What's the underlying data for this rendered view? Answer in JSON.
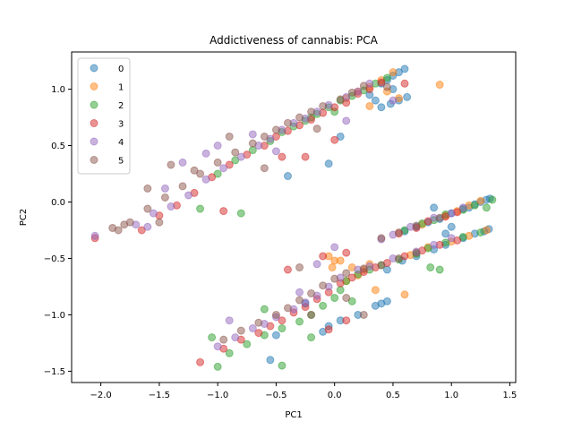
{
  "chart_data": {
    "type": "scatter",
    "title": "Addictiveness of cannabis: PCA",
    "xlabel": "PC1",
    "ylabel": "PC2",
    "xlim": [
      -2.25,
      1.55
    ],
    "ylim": [
      -1.6,
      1.33
    ],
    "xticks": [
      -2.0,
      -1.5,
      -1.0,
      -0.5,
      0.0,
      0.5,
      1.0,
      1.5
    ],
    "xtick_labels": [
      "−2.0",
      "−1.5",
      "−1.0",
      "−0.5",
      "0.0",
      "0.5",
      "1.0",
      "1.5"
    ],
    "yticks": [
      -1.5,
      -1.0,
      -0.5,
      0.0,
      0.5,
      1.0
    ],
    "ytick_labels": [
      "−1.5",
      "−1.0",
      "−0.5",
      "0.0",
      "0.5",
      "1.0"
    ],
    "legend_position": "upper-left",
    "marker_alpha": 0.5,
    "series": [
      {
        "name": "0",
        "color": "#1f77b4",
        "points": [
          [
            1.3,
            0.02
          ],
          [
            1.25,
            0.0
          ],
          [
            1.33,
            0.03
          ],
          [
            1.2,
            -0.02
          ],
          [
            1.1,
            -0.06
          ],
          [
            1.0,
            -0.1
          ],
          [
            0.9,
            -0.15
          ],
          [
            0.8,
            -0.18
          ],
          [
            0.7,
            -0.22
          ],
          [
            0.6,
            -0.26
          ],
          [
            1.32,
            -0.24
          ],
          [
            1.28,
            -0.26
          ],
          [
            1.2,
            -0.28
          ],
          [
            1.1,
            -0.32
          ],
          [
            0.95,
            -0.38
          ],
          [
            0.85,
            -0.42
          ],
          [
            0.7,
            -0.48
          ],
          [
            0.58,
            -0.52
          ],
          [
            0.45,
            -0.6
          ],
          [
            0.6,
            1.18
          ],
          [
            0.55,
            1.15
          ],
          [
            0.5,
            1.12
          ],
          [
            0.45,
            1.08
          ],
          [
            0.4,
            1.05
          ],
          [
            0.62,
            0.93
          ],
          [
            0.55,
            0.9
          ],
          [
            0.48,
            0.87
          ],
          [
            0.4,
            0.84
          ],
          [
            0.05,
            0.58
          ],
          [
            -0.05,
            0.34
          ],
          [
            -0.4,
            0.23
          ],
          [
            0.45,
            -0.88
          ],
          [
            0.4,
            -0.9
          ],
          [
            0.35,
            -0.92
          ],
          [
            0.2,
            -1.0
          ],
          [
            0.05,
            -1.05
          ],
          [
            -0.05,
            -1.1
          ],
          [
            -0.1,
            -1.15
          ],
          [
            -0.25,
            -0.9
          ],
          [
            -0.55,
            -1.4
          ],
          [
            -0.5,
            -1.18
          ],
          [
            0.35,
            0.9
          ],
          [
            0.85,
            -0.05
          ],
          [
            1.15,
            -0.05
          ],
          [
            0.95,
            -0.28
          ],
          [
            0.5,
            1.0
          ],
          [
            0.3,
            0.95
          ],
          [
            1.0,
            -0.22
          ]
        ]
      },
      {
        "name": "1",
        "color": "#ff7f0e",
        "points": [
          [
            1.25,
            0.01
          ],
          [
            1.15,
            -0.03
          ],
          [
            1.05,
            -0.08
          ],
          [
            0.95,
            -0.12
          ],
          [
            0.75,
            -0.2
          ],
          [
            1.3,
            -0.25
          ],
          [
            1.15,
            -0.3
          ],
          [
            1.0,
            -0.35
          ],
          [
            0.8,
            -0.4
          ],
          [
            0.65,
            -0.47
          ],
          [
            0.5,
            1.15
          ],
          [
            0.4,
            1.08
          ],
          [
            0.3,
            1.02
          ],
          [
            0.2,
            0.98
          ],
          [
            0.1,
            0.92
          ],
          [
            0.55,
            0.92
          ],
          [
            0.3,
            0.85
          ],
          [
            0.15,
            -0.58
          ],
          [
            0.05,
            -0.52
          ],
          [
            -0.05,
            -0.48
          ],
          [
            0.0,
            -0.52
          ],
          [
            0.3,
            -0.55
          ],
          [
            0.25,
            -0.6
          ],
          [
            0.1,
            -0.7
          ],
          [
            0.35,
            -0.78
          ],
          [
            0.6,
            -0.82
          ],
          [
            0.9,
            1.04
          ],
          [
            0.45,
            0.98
          ],
          [
            0.2,
            -0.65
          ],
          [
            -0.02,
            -0.58
          ]
        ]
      },
      {
        "name": "2",
        "color": "#2ca02c",
        "points": [
          [
            1.2,
            -0.03
          ],
          [
            1.1,
            -0.07
          ],
          [
            0.95,
            -0.11
          ],
          [
            0.85,
            -0.16
          ],
          [
            0.75,
            -0.19
          ],
          [
            0.6,
            -0.25
          ],
          [
            1.25,
            -0.27
          ],
          [
            1.1,
            -0.31
          ],
          [
            0.95,
            -0.36
          ],
          [
            0.8,
            -0.41
          ],
          [
            0.7,
            -0.46
          ],
          [
            0.55,
            -0.51
          ],
          [
            0.4,
            -0.56
          ],
          [
            0.3,
            -0.6
          ],
          [
            0.2,
            -0.64
          ],
          [
            0.1,
            -0.7
          ],
          [
            0.05,
            -0.78
          ],
          [
            0.0,
            -0.85
          ],
          [
            -0.1,
            -0.92
          ],
          [
            -0.2,
            -1.0
          ],
          [
            -0.3,
            -1.06
          ],
          [
            -0.45,
            -1.12
          ],
          [
            -0.6,
            -1.18
          ],
          [
            -0.75,
            -1.26
          ],
          [
            -0.9,
            -1.34
          ],
          [
            -1.0,
            -1.46
          ],
          [
            -1.05,
            -1.2
          ],
          [
            -0.45,
            -1.45
          ],
          [
            -0.6,
            -0.95
          ],
          [
            0.45,
            1.1
          ],
          [
            0.35,
            1.05
          ],
          [
            0.25,
            0.99
          ],
          [
            0.15,
            0.94
          ],
          [
            0.05,
            0.9
          ],
          [
            -0.05,
            0.84
          ],
          [
            -0.15,
            0.78
          ],
          [
            -0.25,
            0.72
          ],
          [
            -0.35,
            0.67
          ],
          [
            -0.45,
            0.62
          ],
          [
            -0.55,
            0.54
          ],
          [
            -0.7,
            0.46
          ],
          [
            -0.85,
            0.37
          ],
          [
            -1.0,
            0.25
          ],
          [
            -1.15,
            -0.06
          ],
          [
            -0.2,
            0.75
          ],
          [
            0.0,
            0.8
          ],
          [
            -0.8,
            -0.1
          ],
          [
            0.9,
            -0.6
          ],
          [
            0.82,
            -0.58
          ],
          [
            0.15,
            -0.88
          ],
          [
            -0.2,
            -1.2
          ],
          [
            1.3,
            -0.05
          ],
          [
            1.35,
            0.02
          ]
        ]
      },
      {
        "name": "3",
        "color": "#d62728",
        "points": [
          [
            1.05,
            -0.09
          ],
          [
            0.95,
            -0.13
          ],
          [
            0.8,
            -0.17
          ],
          [
            0.7,
            -0.23
          ],
          [
            0.55,
            -0.28
          ],
          [
            1.05,
            -0.34
          ],
          [
            0.9,
            -0.38
          ],
          [
            0.75,
            -0.43
          ],
          [
            0.6,
            -0.48
          ],
          [
            0.45,
            -0.54
          ],
          [
            0.35,
            -0.58
          ],
          [
            0.25,
            -0.62
          ],
          [
            0.15,
            -0.67
          ],
          [
            0.05,
            -0.72
          ],
          [
            -0.05,
            -0.8
          ],
          [
            -0.15,
            -0.86
          ],
          [
            -0.25,
            -0.93
          ],
          [
            -0.35,
            -0.98
          ],
          [
            -0.45,
            -1.05
          ],
          [
            -0.55,
            -1.1
          ],
          [
            -0.65,
            -1.16
          ],
          [
            -0.8,
            -1.22
          ],
          [
            -0.95,
            -1.3
          ],
          [
            -1.15,
            -1.42
          ],
          [
            -0.4,
            -0.6
          ],
          [
            -0.1,
            -0.48
          ],
          [
            0.1,
            -0.45
          ],
          [
            0.4,
            1.06
          ],
          [
            0.3,
            1.0
          ],
          [
            0.2,
            0.96
          ],
          [
            0.1,
            0.88
          ],
          [
            0.0,
            0.84
          ],
          [
            -0.1,
            0.79
          ],
          [
            -0.2,
            0.73
          ],
          [
            -0.3,
            0.68
          ],
          [
            -0.4,
            0.63
          ],
          [
            -0.5,
            0.58
          ],
          [
            -0.6,
            0.5
          ],
          [
            -0.75,
            0.42
          ],
          [
            -0.9,
            0.33
          ],
          [
            -1.05,
            0.22
          ],
          [
            -1.2,
            0.08
          ],
          [
            -1.35,
            -0.03
          ],
          [
            -1.5,
            -0.12
          ],
          [
            -1.65,
            -0.25
          ],
          [
            -2.05,
            -0.32
          ],
          [
            -0.25,
            0.4
          ],
          [
            -0.45,
            0.4
          ],
          [
            -0.95,
            -0.08
          ],
          [
            -0.05,
            -1.13
          ],
          [
            0.1,
            -1.05
          ],
          [
            0.0,
            0.55
          ],
          [
            0.6,
            1.05
          ]
        ]
      },
      {
        "name": "4",
        "color": "#9467bd",
        "points": [
          [
            1.1,
            -0.05
          ],
          [
            1.0,
            -0.1
          ],
          [
            0.85,
            -0.14
          ],
          [
            0.65,
            -0.22
          ],
          [
            0.5,
            -0.29
          ],
          [
            0.4,
            -0.33
          ],
          [
            1.0,
            -0.32
          ],
          [
            0.85,
            -0.38
          ],
          [
            0.7,
            -0.44
          ],
          [
            0.5,
            -0.5
          ],
          [
            0.3,
            -0.57
          ],
          [
            0.2,
            -0.6
          ],
          [
            0.05,
            -0.67
          ],
          [
            -0.05,
            -0.75
          ],
          [
            -0.15,
            -0.83
          ],
          [
            -0.25,
            -0.89
          ],
          [
            -0.35,
            -0.95
          ],
          [
            -0.5,
            -1.02
          ],
          [
            -0.6,
            -1.08
          ],
          [
            -0.7,
            -1.12
          ],
          [
            -0.85,
            -1.2
          ],
          [
            -1.0,
            -1.28
          ],
          [
            -0.9,
            -1.05
          ],
          [
            -0.3,
            -0.8
          ],
          [
            0.0,
            -0.4
          ],
          [
            -0.15,
            -0.55
          ],
          [
            0.3,
            1.05
          ],
          [
            0.2,
            0.98
          ],
          [
            0.1,
            0.93
          ],
          [
            -0.05,
            0.86
          ],
          [
            -0.15,
            0.8
          ],
          [
            -0.25,
            0.74
          ],
          [
            -0.35,
            0.7
          ],
          [
            -0.45,
            0.64
          ],
          [
            -0.55,
            0.56
          ],
          [
            -0.65,
            0.5
          ],
          [
            -0.8,
            0.4
          ],
          [
            -0.95,
            0.3
          ],
          [
            -1.1,
            0.2
          ],
          [
            -1.25,
            0.06
          ],
          [
            -1.4,
            -0.04
          ],
          [
            -1.55,
            -0.1
          ],
          [
            -1.7,
            -0.2
          ],
          [
            -2.05,
            -0.3
          ],
          [
            -1.45,
            0.12
          ],
          [
            -1.1,
            0.43
          ],
          [
            -1.3,
            0.35
          ],
          [
            -1.0,
            0.5
          ],
          [
            -0.7,
            0.6
          ],
          [
            -0.5,
            0.45
          ],
          [
            -1.6,
            -0.22
          ],
          [
            0.5,
            0.9
          ],
          [
            0.1,
            0.72
          ]
        ]
      },
      {
        "name": "5",
        "color": "#8c564b",
        "points": [
          [
            0.9,
            -0.14
          ],
          [
            0.7,
            -0.21
          ],
          [
            0.55,
            -0.27
          ],
          [
            0.4,
            -0.32
          ],
          [
            0.7,
            -0.45
          ],
          [
            0.55,
            -0.5
          ],
          [
            0.4,
            -0.56
          ],
          [
            0.25,
            -0.59
          ],
          [
            0.1,
            -0.63
          ],
          [
            0.0,
            -0.68
          ],
          [
            -0.1,
            -0.74
          ],
          [
            -0.2,
            -0.81
          ],
          [
            -0.3,
            -0.87
          ],
          [
            -0.4,
            -0.94
          ],
          [
            -0.5,
            -1.0
          ],
          [
            -0.65,
            -1.07
          ],
          [
            -0.8,
            -1.14
          ],
          [
            -0.95,
            -1.22
          ],
          [
            -0.3,
            -0.58
          ],
          [
            0.1,
            -0.85
          ],
          [
            0.25,
            -1.0
          ],
          [
            -0.2,
            -1.0
          ],
          [
            0.25,
            1.03
          ],
          [
            0.15,
            0.97
          ],
          [
            0.05,
            0.91
          ],
          [
            -0.1,
            0.85
          ],
          [
            -0.2,
            0.8
          ],
          [
            -0.3,
            0.75
          ],
          [
            -0.4,
            0.7
          ],
          [
            -0.5,
            0.64
          ],
          [
            -0.6,
            0.58
          ],
          [
            -0.7,
            0.52
          ],
          [
            -0.85,
            0.44
          ],
          [
            -1.0,
            0.35
          ],
          [
            -1.15,
            0.25
          ],
          [
            -1.3,
            0.14
          ],
          [
            -1.45,
            0.04
          ],
          [
            -1.6,
            -0.06
          ],
          [
            -1.75,
            -0.18
          ],
          [
            -1.9,
            -0.23
          ],
          [
            -1.85,
            -0.25
          ],
          [
            -1.4,
            0.33
          ],
          [
            -1.6,
            0.12
          ],
          [
            -1.2,
            0.28
          ],
          [
            -0.9,
            0.58
          ],
          [
            -0.6,
            0.3
          ],
          [
            -1.8,
            -0.2
          ],
          [
            -1.5,
            -0.18
          ],
          [
            0.45,
            1.02
          ],
          [
            -0.15,
            0.65
          ]
        ]
      }
    ]
  }
}
